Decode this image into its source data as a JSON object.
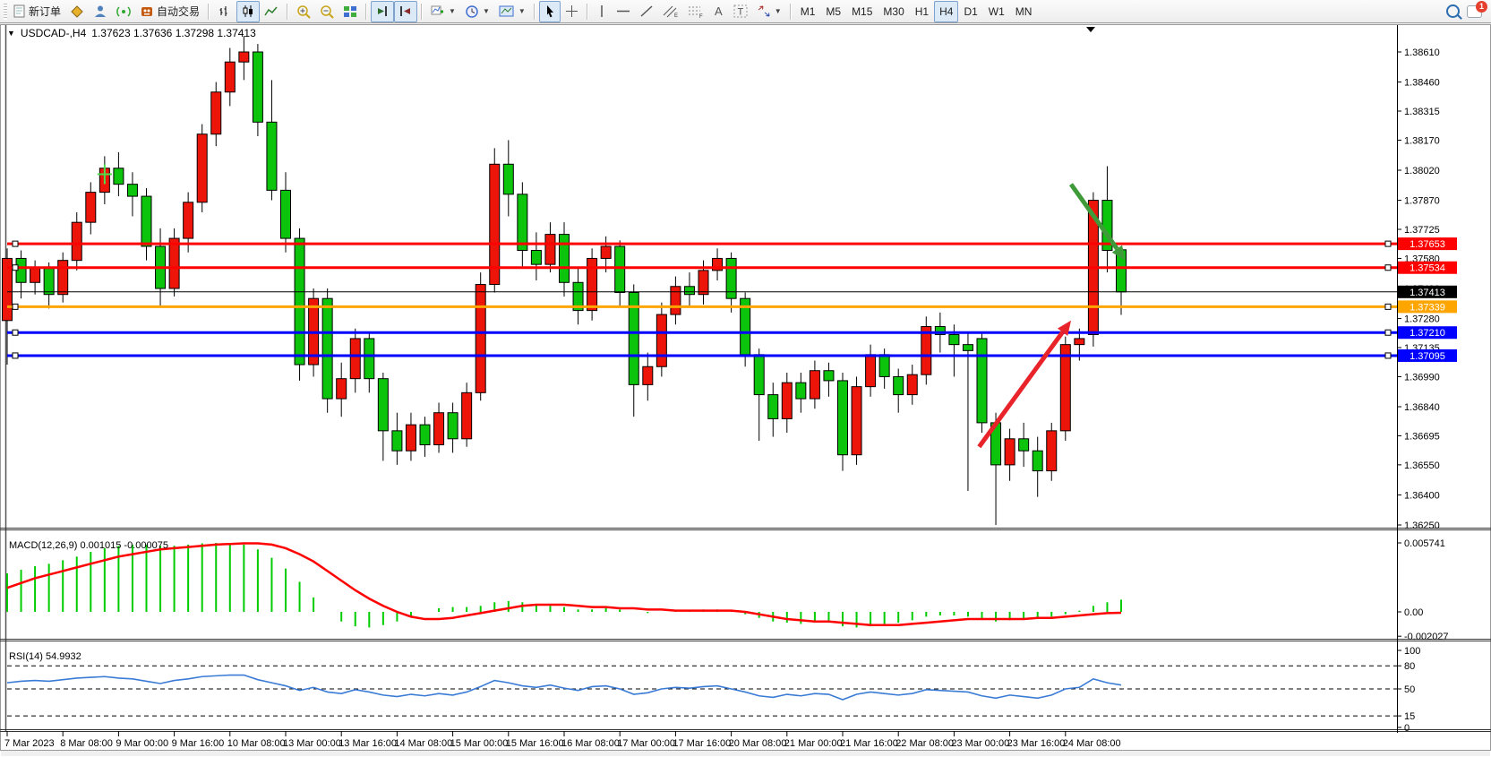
{
  "toolbar": {
    "new_order_label": "新订单",
    "autotrade_label": "自动交易",
    "chat_badge": "1"
  },
  "timeframes": {
    "options": [
      "M1",
      "M5",
      "M15",
      "M30",
      "H1",
      "H4",
      "D1",
      "W1",
      "MN"
    ],
    "active": "H4"
  },
  "chart": {
    "symbol_title": "USDCAD-,H4",
    "ohlc_display": "1.37623 1.37636 1.37298 1.37413",
    "macd_label": "MACD(12,26,9) 0.001015 -0.000075",
    "rsi_label": "RSI(14) 54.9932"
  },
  "chart_data": {
    "type": "candlestick",
    "symbol": "USDCAD-",
    "period": "H4",
    "last_ohlc": {
      "open": 1.37623,
      "high": 1.37636,
      "low": 1.37298,
      "close": 1.37413
    },
    "colors": {
      "bull": "#ed1409",
      "bear": "#0cc40c",
      "wick": "#000000",
      "macd_hist": "#00cc00",
      "macd_signal": "#ff0000",
      "rsi_line": "#3a7bd5",
      "cross_marker": "#4be04b"
    },
    "price_axis_ticks": [
      1.3861,
      1.3846,
      1.38315,
      1.3817,
      1.3802,
      1.3787,
      1.37725,
      1.3758,
      1.3743,
      1.3728,
      1.37135,
      1.3699,
      1.3684,
      1.36695,
      1.3655,
      1.364,
      1.3625
    ],
    "time_labels": [
      "7 Mar 2023",
      "8 Mar 08:00",
      "9 Mar 00:00",
      "9 Mar 16:00",
      "10 Mar 08:00",
      "13 Mar 00:00",
      "13 Mar 16:00",
      "14 Mar 08:00",
      "15 Mar 00:00",
      "15 Mar 16:00",
      "16 Mar 08:00",
      "17 Mar 00:00",
      "17 Mar 16:00",
      "20 Mar 08:00",
      "21 Mar 00:00",
      "21 Mar 16:00",
      "22 Mar 08:00",
      "23 Mar 00:00",
      "23 Mar 16:00",
      "24 Mar 08:00"
    ],
    "bars_per_label": 4,
    "hlines": [
      {
        "price": 1.37653,
        "label": "1.37653",
        "color": "#ff0000",
        "width": 3,
        "handles": true
      },
      {
        "price": 1.37534,
        "label": "1.37534",
        "color": "#ff0000",
        "width": 3,
        "handles": true
      },
      {
        "price": 1.37413,
        "label": "1.37413",
        "color": "#000000",
        "width": 1,
        "handles": false
      },
      {
        "price": 1.37339,
        "label": "1.37339",
        "color": "#ffa500",
        "width": 3,
        "handles": true
      },
      {
        "price": 1.3721,
        "label": "1.37210",
        "color": "#0000ff",
        "width": 3,
        "handles": true
      },
      {
        "price": 1.37095,
        "label": "1.37095",
        "color": "#0000ff",
        "width": 3,
        "handles": true
      }
    ],
    "arrows": [
      {
        "name": "down-arrow",
        "from_bar": 76.4,
        "from_price": 1.3795,
        "to_bar": 80.3,
        "to_price": 1.3757,
        "color": "#3f9b3a"
      },
      {
        "name": "up-arrow",
        "from_bar": 69.8,
        "from_price": 1.3664,
        "to_bar": 76.4,
        "to_price": 1.3727,
        "color": "#e8232a"
      }
    ],
    "cross_marker": {
      "bar": 7,
      "price": 1.38
    },
    "candles": [
      [
        1.3727,
        1.3763,
        1.3705,
        1.3758
      ],
      [
        1.3758,
        1.3762,
        1.3738,
        1.3746
      ],
      [
        1.3746,
        1.3757,
        1.374,
        1.3753
      ],
      [
        1.3753,
        1.3756,
        1.3733,
        1.374
      ],
      [
        1.374,
        1.3761,
        1.3736,
        1.3757
      ],
      [
        1.3757,
        1.3781,
        1.3752,
        1.3776
      ],
      [
        1.3776,
        1.3796,
        1.377,
        1.3791
      ],
      [
        1.3791,
        1.3809,
        1.3785,
        1.3803
      ],
      [
        1.3803,
        1.3811,
        1.3789,
        1.3795
      ],
      [
        1.3795,
        1.3801,
        1.3779,
        1.3789
      ],
      [
        1.3789,
        1.3793,
        1.3757,
        1.3764
      ],
      [
        1.3764,
        1.3773,
        1.3734,
        1.3743
      ],
      [
        1.3743,
        1.3773,
        1.3739,
        1.3768
      ],
      [
        1.3768,
        1.3791,
        1.3761,
        1.3786
      ],
      [
        1.3786,
        1.3825,
        1.3781,
        1.382
      ],
      [
        1.382,
        1.3846,
        1.3814,
        1.3841
      ],
      [
        1.3841,
        1.3863,
        1.3834,
        1.3856
      ],
      [
        1.3856,
        1.3869,
        1.3847,
        1.3861
      ],
      [
        1.3861,
        1.3865,
        1.3819,
        1.3826
      ],
      [
        1.3826,
        1.3847,
        1.3787,
        1.3792
      ],
      [
        1.3792,
        1.3801,
        1.3761,
        1.3768
      ],
      [
        1.3768,
        1.3773,
        1.3697,
        1.3705
      ],
      [
        1.3705,
        1.3743,
        1.3699,
        1.3738
      ],
      [
        1.3738,
        1.3743,
        1.3681,
        1.3688
      ],
      [
        1.3688,
        1.3706,
        1.3679,
        1.3698
      ],
      [
        1.3698,
        1.3723,
        1.3691,
        1.3718
      ],
      [
        1.3718,
        1.3721,
        1.3691,
        1.3698
      ],
      [
        1.3698,
        1.3701,
        1.3657,
        1.3672
      ],
      [
        1.3672,
        1.3681,
        1.3655,
        1.3662
      ],
      [
        1.3662,
        1.3681,
        1.3657,
        1.3675
      ],
      [
        1.3675,
        1.3679,
        1.3659,
        1.3665
      ],
      [
        1.3665,
        1.3686,
        1.3661,
        1.3681
      ],
      [
        1.3681,
        1.3686,
        1.3661,
        1.3668
      ],
      [
        1.3668,
        1.3696,
        1.3664,
        1.3691
      ],
      [
        1.3691,
        1.3751,
        1.3687,
        1.3745
      ],
      [
        1.3745,
        1.3813,
        1.3741,
        1.3805
      ],
      [
        1.3805,
        1.3817,
        1.3779,
        1.379
      ],
      [
        1.379,
        1.3796,
        1.3754,
        1.3762
      ],
      [
        1.3762,
        1.3771,
        1.3747,
        1.3755
      ],
      [
        1.3755,
        1.3776,
        1.3751,
        1.377
      ],
      [
        1.377,
        1.3776,
        1.3739,
        1.3746
      ],
      [
        1.3746,
        1.3753,
        1.3725,
        1.3732
      ],
      [
        1.3732,
        1.3763,
        1.3727,
        1.3758
      ],
      [
        1.3758,
        1.3769,
        1.3751,
        1.3764
      ],
      [
        1.3764,
        1.3767,
        1.3734,
        1.3741
      ],
      [
        1.3741,
        1.3745,
        1.3679,
        1.3695
      ],
      [
        1.3695,
        1.3711,
        1.3687,
        1.3704
      ],
      [
        1.3704,
        1.3736,
        1.3699,
        1.373
      ],
      [
        1.373,
        1.3749,
        1.3725,
        1.3744
      ],
      [
        1.3744,
        1.3751,
        1.3734,
        1.374
      ],
      [
        1.374,
        1.3757,
        1.3735,
        1.3752
      ],
      [
        1.3752,
        1.3763,
        1.3747,
        1.3758
      ],
      [
        1.3758,
        1.3761,
        1.3731,
        1.3738
      ],
      [
        1.3738,
        1.3741,
        1.3704,
        1.371
      ],
      [
        1.371,
        1.3713,
        1.3667,
        1.369
      ],
      [
        1.369,
        1.3696,
        1.3669,
        1.3678
      ],
      [
        1.3678,
        1.3701,
        1.3671,
        1.3696
      ],
      [
        1.3696,
        1.3701,
        1.3681,
        1.3688
      ],
      [
        1.3688,
        1.3707,
        1.3683,
        1.3702
      ],
      [
        1.3702,
        1.3706,
        1.3689,
        1.3697
      ],
      [
        1.3697,
        1.3701,
        1.3652,
        1.366
      ],
      [
        1.366,
        1.3699,
        1.3655,
        1.3694
      ],
      [
        1.3694,
        1.3715,
        1.3689,
        1.371
      ],
      [
        1.371,
        1.3713,
        1.3693,
        1.3699
      ],
      [
        1.3699,
        1.3703,
        1.3681,
        1.369
      ],
      [
        1.369,
        1.3705,
        1.3685,
        1.37
      ],
      [
        1.37,
        1.3729,
        1.3695,
        1.3724
      ],
      [
        1.3724,
        1.3731,
        1.3711,
        1.372
      ],
      [
        1.372,
        1.3725,
        1.3699,
        1.3715
      ],
      [
        1.3715,
        1.3721,
        1.3642,
        1.3712
      ],
      [
        1.3718,
        1.3721,
        1.3671,
        1.3676
      ],
      [
        1.3676,
        1.3681,
        1.3625,
        1.3655
      ],
      [
        1.3655,
        1.3673,
        1.3647,
        1.3668
      ],
      [
        1.3668,
        1.3676,
        1.3654,
        1.3662
      ],
      [
        1.3662,
        1.3669,
        1.3639,
        1.3652
      ],
      [
        1.3652,
        1.3676,
        1.3647,
        1.3672
      ],
      [
        1.3672,
        1.3719,
        1.3667,
        1.3715
      ],
      [
        1.3715,
        1.3723,
        1.3707,
        1.3718
      ],
      [
        1.372,
        1.3791,
        1.3714,
        1.3787
      ],
      [
        1.3787,
        1.3804,
        1.3751,
        1.3762
      ],
      [
        1.37623,
        1.37636,
        1.37298,
        1.37413
      ]
    ],
    "macd": {
      "params": "12,26,9",
      "last_macd": 0.001015,
      "last_signal": -7.5e-05,
      "axis_ticks": [
        {
          "v": 0.005741,
          "label": "0.005741"
        },
        {
          "v": 0,
          "label": "0.00"
        },
        {
          "v": -0.002027,
          "label": "-0.002027"
        }
      ],
      "histogram": [
        0.0032,
        0.0035,
        0.0038,
        0.004,
        0.0043,
        0.0046,
        0.005,
        0.0053,
        0.0055,
        0.0056,
        0.0056,
        0.0055,
        0.0055,
        0.0056,
        0.0057,
        0.00574,
        0.0057,
        0.0056,
        0.0052,
        0.0045,
        0.0036,
        0.0025,
        0.0012,
        0.0,
        -0.0008,
        -0.0012,
        -0.0013,
        -0.0011,
        -0.0008,
        -0.0004,
        0.0,
        0.0003,
        0.0004,
        0.0004,
        0.0005,
        0.0008,
        0.0009,
        0.0008,
        0.0006,
        0.0005,
        0.0004,
        0.0002,
        0.0002,
        0.0003,
        0.0002,
        0.0,
        -0.0001,
        0.0,
        0.0001,
        0.0001,
        0.0002,
        0.0002,
        0.0001,
        -0.0002,
        -0.0005,
        -0.0008,
        -0.0009,
        -0.001,
        -0.0009,
        -0.0009,
        -0.0012,
        -0.0013,
        -0.0012,
        -0.001,
        -0.0009,
        -0.0007,
        -0.0004,
        -0.0003,
        -0.0003,
        -0.0004,
        -0.0006,
        -0.0008,
        -0.0007,
        -0.0006,
        -0.0006,
        -0.0004,
        -0.0002,
        0.0001,
        0.0005,
        0.0008,
        0.001015
      ],
      "signal": [
        0.002,
        0.0024,
        0.0028,
        0.0031,
        0.0034,
        0.0037,
        0.004,
        0.0043,
        0.0046,
        0.0048,
        0.005,
        0.0052,
        0.0053,
        0.0054,
        0.0055,
        0.0056,
        0.00565,
        0.0057,
        0.0057,
        0.0056,
        0.0053,
        0.0048,
        0.0042,
        0.0034,
        0.0026,
        0.0018,
        0.0011,
        0.0005,
        0.0,
        -0.0004,
        -0.0006,
        -0.0006,
        -0.0005,
        -0.0003,
        -0.0001,
        0.0001,
        0.0003,
        0.0005,
        0.0006,
        0.0006,
        0.0006,
        0.0005,
        0.0004,
        0.0004,
        0.0003,
        0.0003,
        0.0002,
        0.0002,
        0.0001,
        0.0001,
        0.0001,
        0.0001,
        0.0001,
        0.0,
        -0.0002,
        -0.0004,
        -0.0006,
        -0.0007,
        -0.0008,
        -0.0008,
        -0.0009,
        -0.001,
        -0.0011,
        -0.0011,
        -0.0011,
        -0.001,
        -0.0009,
        -0.0008,
        -0.0007,
        -0.0006,
        -0.0006,
        -0.0006,
        -0.0006,
        -0.0006,
        -0.0005,
        -0.0005,
        -0.0004,
        -0.0003,
        -0.0002,
        -0.0001,
        -7.5e-05
      ]
    },
    "rsi": {
      "period": 14,
      "last": 54.9932,
      "axis_ticks": [
        100,
        80,
        50,
        15,
        0
      ],
      "levels": [
        80,
        50,
        15
      ],
      "values": [
        58,
        60,
        61,
        60,
        62,
        64,
        65,
        66,
        64,
        63,
        60,
        57,
        61,
        63,
        66,
        67,
        68,
        68,
        62,
        58,
        54,
        48,
        52,
        46,
        44,
        49,
        46,
        42,
        40,
        43,
        41,
        44,
        42,
        46,
        53,
        61,
        58,
        54,
        52,
        55,
        51,
        48,
        53,
        54,
        50,
        43,
        45,
        50,
        52,
        51,
        53,
        54,
        50,
        46,
        41,
        39,
        43,
        41,
        44,
        43,
        36,
        43,
        46,
        44,
        42,
        44,
        49,
        48,
        47,
        46,
        41,
        38,
        42,
        40,
        38,
        42,
        50,
        52,
        63,
        58,
        54.9932
      ]
    }
  }
}
